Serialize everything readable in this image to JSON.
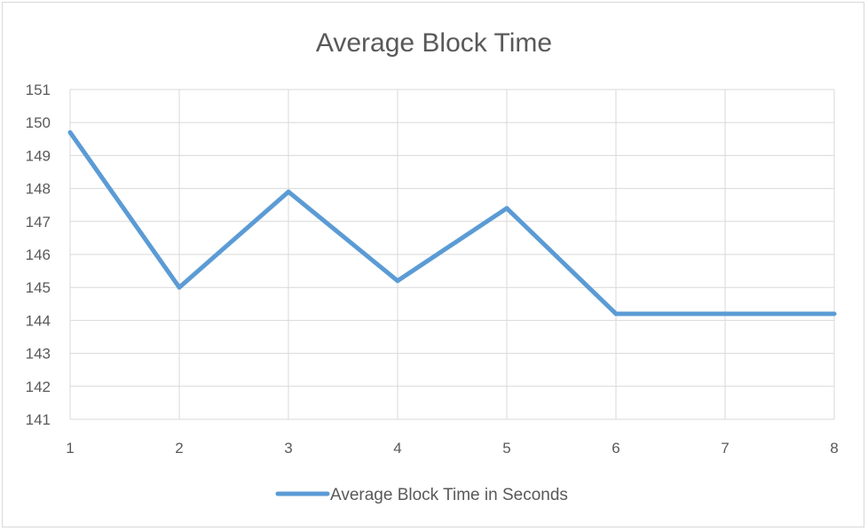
{
  "chart_data": {
    "type": "line",
    "title": "Average Block Time",
    "x": [
      1,
      2,
      3,
      4,
      5,
      6,
      7,
      8
    ],
    "series": [
      {
        "name": "Average Block Time in Seconds",
        "values": [
          149.7,
          145.0,
          147.9,
          145.2,
          147.4,
          144.2,
          144.2,
          144.2
        ]
      }
    ],
    "xlim": [
      1,
      8
    ],
    "ylim": [
      141,
      151
    ],
    "yticks": [
      141,
      142,
      143,
      144,
      145,
      146,
      147,
      148,
      149,
      150,
      151
    ],
    "xticks": [
      1,
      2,
      3,
      4,
      5,
      6,
      7,
      8
    ],
    "grid": true,
    "legend_position": "bottom",
    "colors": {
      "series": "#5b9bd5",
      "grid": "#d9d9d9",
      "text": "#595959"
    }
  }
}
